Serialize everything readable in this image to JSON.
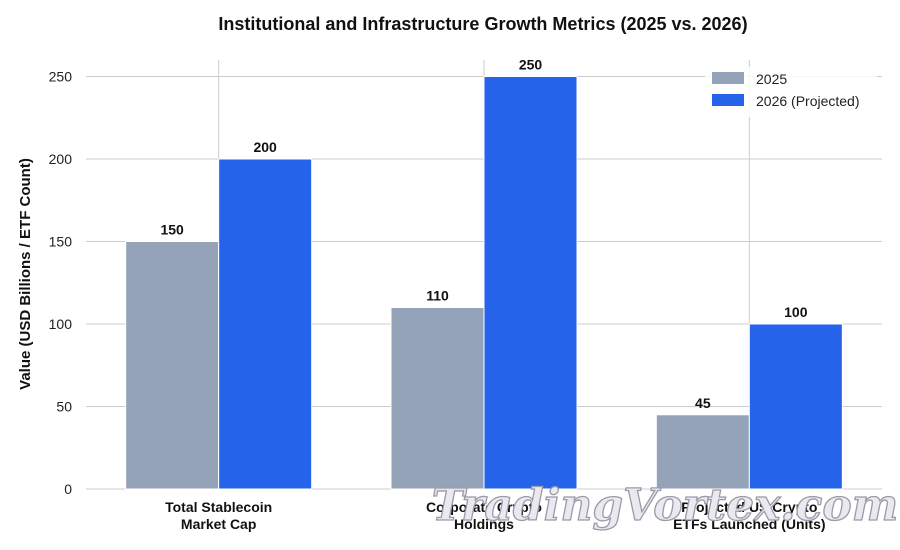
{
  "chart_data": {
    "type": "bar",
    "title": "Institutional and Infrastructure Growth Metrics (2025 vs. 2026)",
    "xlabel": "",
    "ylabel": "Value (USD Billions / ETF Count)",
    "ylim": [
      0,
      260
    ],
    "yticks": [
      0,
      50,
      100,
      150,
      200,
      250
    ],
    "grid": true,
    "legend_position": "top-right",
    "categories": [
      [
        "Total Stablecoin",
        "Market Cap"
      ],
      [
        "Corporate Crypto",
        "Holdings"
      ],
      [
        "Projected US Crypto",
        "ETFs Launched (Units)"
      ]
    ],
    "series": [
      {
        "name": "2025",
        "values": [
          150,
          110,
          45
        ],
        "color": "#94a3b8"
      },
      {
        "name": "2026 (Projected)",
        "values": [
          200,
          250,
          100
        ],
        "color": "#2563eb"
      }
    ]
  },
  "watermark": "TradingVortex.com"
}
